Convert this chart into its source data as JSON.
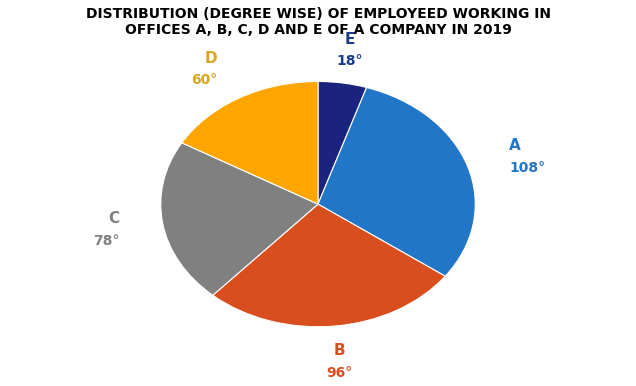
{
  "title": "DISTRIBUTION (DEGREE WISE) OF EMPLOYEED WORKING IN\nOFFICES A, B, C, D AND E OF A COMPANY IN 2019",
  "slices": [
    108,
    96,
    78,
    60,
    18
  ],
  "labels": [
    "A",
    "B",
    "C",
    "D",
    "E"
  ],
  "degrees": [
    "108°",
    "96°",
    "78°",
    "60°",
    "18°"
  ],
  "colors": [
    "#2176C7",
    "#D94E1F",
    "#808080",
    "#FFA500",
    "#1A237E"
  ],
  "label_colors": [
    "#2176C7",
    "#D94E1F",
    "#808080",
    "#DAA520",
    "#1A3A8A"
  ],
  "background_color": "#ffffff",
  "title_fontsize": 10,
  "label_fontsize": 11,
  "degree_fontsize": 10
}
